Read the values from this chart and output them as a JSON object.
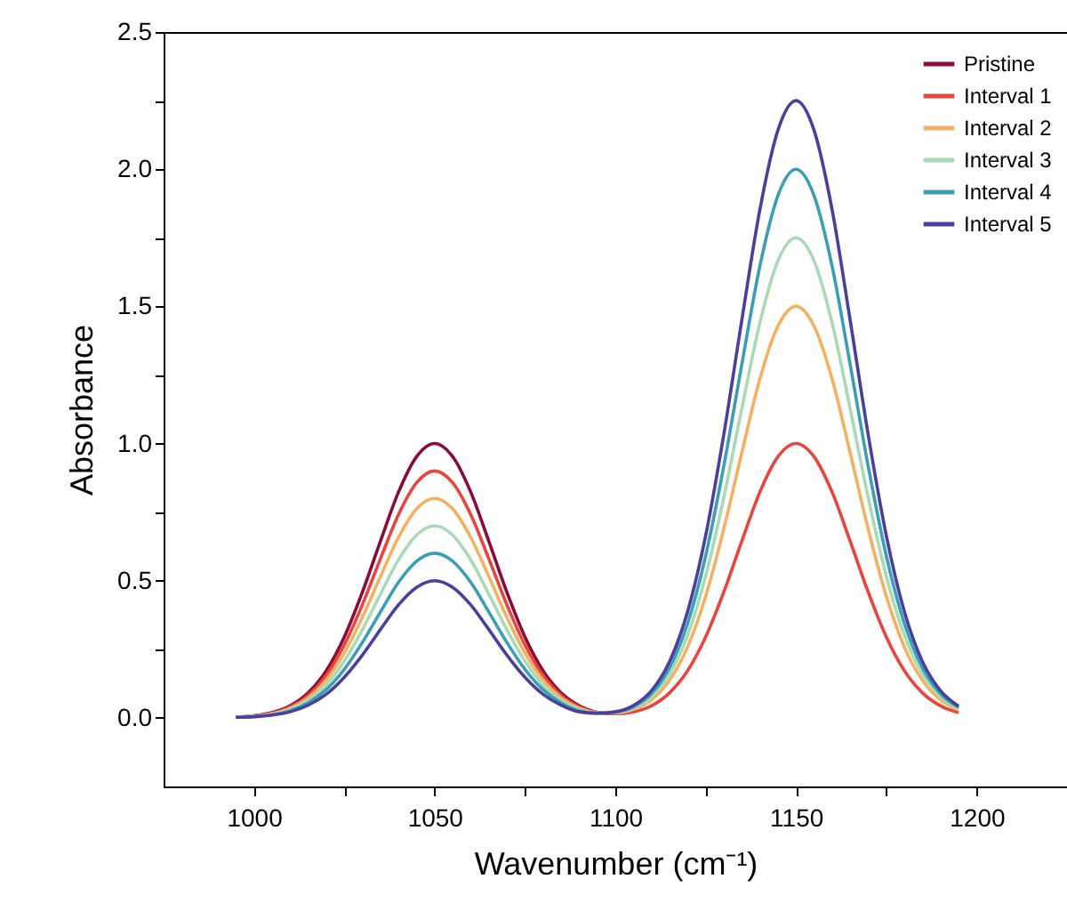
{
  "chart_data": {
    "type": "line",
    "xlabel": "Wavenumber (cm⁻¹)",
    "ylabel": "Absorbance",
    "x": [
      995,
      1000,
      1005,
      1010,
      1015,
      1020,
      1025,
      1030,
      1035,
      1040,
      1045,
      1050,
      1055,
      1060,
      1065,
      1070,
      1075,
      1080,
      1085,
      1090,
      1095,
      1100,
      1105,
      1110,
      1115,
      1120,
      1125,
      1130,
      1135,
      1140,
      1145,
      1150,
      1155,
      1160,
      1165,
      1170,
      1175,
      1180,
      1185,
      1190,
      1195
    ],
    "series": [
      {
        "name": "Pristine",
        "color": "#8b0a3c",
        "values": [
          0.003,
          0.008,
          0.019,
          0.044,
          0.091,
          0.172,
          0.295,
          0.458,
          0.644,
          0.823,
          0.952,
          1,
          0.952,
          0.823,
          0.644,
          0.458,
          0.295,
          0.172,
          0.091,
          0.044,
          0.019,
          null,
          null,
          null,
          null,
          null,
          null,
          null,
          null,
          null,
          null,
          null,
          null,
          null,
          null,
          null,
          null,
          null,
          null,
          null,
          null
        ]
      },
      {
        "name": "Interval 1",
        "color": "#e8453c",
        "values": [
          0.003,
          0.007,
          0.017,
          0.04,
          0.082,
          0.155,
          0.266,
          0.412,
          0.58,
          0.741,
          0.857,
          0.9,
          0.857,
          0.741,
          0.58,
          0.412,
          0.266,
          0.155,
          0.082,
          0.04,
          0.02,
          0.015,
          0.022,
          0.044,
          0.091,
          0.172,
          0.295,
          0.458,
          0.644,
          0.823,
          0.952,
          1,
          0.952,
          0.823,
          0.644,
          0.458,
          0.295,
          0.172,
          0.091,
          0.044,
          0.019
        ]
      },
      {
        "name": "Interval 2",
        "color": "#f6b160",
        "values": [
          0.002,
          0.006,
          0.015,
          0.035,
          0.073,
          0.138,
          0.236,
          0.366,
          0.515,
          0.658,
          0.762,
          0.8,
          0.762,
          0.658,
          0.515,
          0.366,
          0.236,
          0.138,
          0.073,
          0.035,
          0.02,
          0.018,
          0.031,
          0.066,
          0.137,
          0.258,
          0.443,
          0.687,
          0.966,
          1.235,
          1.428,
          1.5,
          1.428,
          1.235,
          0.966,
          0.687,
          0.443,
          0.258,
          0.137,
          0.066,
          0.029
        ]
      },
      {
        "name": "Interval 3",
        "color": "#a8dbb5",
        "values": [
          0.002,
          0.006,
          0.013,
          0.031,
          0.064,
          0.12,
          0.207,
          0.321,
          0.451,
          0.576,
          0.666,
          0.7,
          0.666,
          0.576,
          0.451,
          0.321,
          0.207,
          0.12,
          0.064,
          0.031,
          0.018,
          0.02,
          0.035,
          0.077,
          0.159,
          0.301,
          0.516,
          0.802,
          1.127,
          1.44,
          1.666,
          1.75,
          1.666,
          1.44,
          1.127,
          0.802,
          0.516,
          0.301,
          0.159,
          0.077,
          0.033
        ]
      },
      {
        "name": "Interval 4",
        "color": "#3a9fb5",
        "values": [
          0.002,
          0.005,
          0.011,
          0.026,
          0.055,
          0.103,
          0.177,
          0.275,
          0.386,
          0.494,
          0.571,
          0.6,
          0.571,
          0.494,
          0.386,
          0.275,
          0.177,
          0.103,
          0.055,
          0.026,
          0.017,
          0.021,
          0.04,
          0.088,
          0.182,
          0.344,
          0.59,
          0.916,
          1.288,
          1.646,
          1.904,
          2,
          1.904,
          1.646,
          1.288,
          0.916,
          0.59,
          0.344,
          0.182,
          0.088,
          0.038
        ]
      },
      {
        "name": "Interval 5",
        "color": "#4b3f9e",
        "values": [
          0.002,
          0.004,
          0.01,
          0.022,
          0.046,
          0.086,
          0.148,
          0.229,
          0.322,
          0.412,
          0.476,
          0.5,
          0.476,
          0.412,
          0.322,
          0.229,
          0.148,
          0.086,
          0.046,
          0.022,
          0.017,
          0.022,
          0.045,
          0.099,
          0.205,
          0.387,
          0.664,
          1.031,
          1.449,
          1.852,
          2.142,
          2.25,
          2.142,
          1.852,
          1.449,
          1.031,
          0.664,
          0.387,
          0.205,
          0.099,
          0.043
        ]
      }
    ],
    "xlim": [
      975,
      1225
    ],
    "xticks": [
      1000,
      {
        "value": 1025,
        "label": null
      },
      1050,
      {
        "value": 1075,
        "label": null
      },
      1100,
      {
        "value": 1125,
        "label": null
      },
      1150,
      {
        "value": 1175,
        "label": null
      },
      1200
    ],
    "ylim": [
      -0.25,
      2.5
    ],
    "yticks": [
      {
        "value": 0,
        "label": "0.0"
      },
      {
        "value": 0.25,
        "label": null
      },
      0.5,
      {
        "value": 0.75,
        "label": null
      },
      {
        "value": 1,
        "label": "1.0"
      },
      {
        "value": 1.25,
        "label": null
      },
      1.5,
      {
        "value": 1.75,
        "label": null
      },
      {
        "value": 2,
        "label": "2.0"
      },
      {
        "value": 2.25,
        "label": null
      },
      2.5
    ],
    "legend": "top right",
    "grid": false,
    "marker": "none",
    "line_style": "solid"
  }
}
